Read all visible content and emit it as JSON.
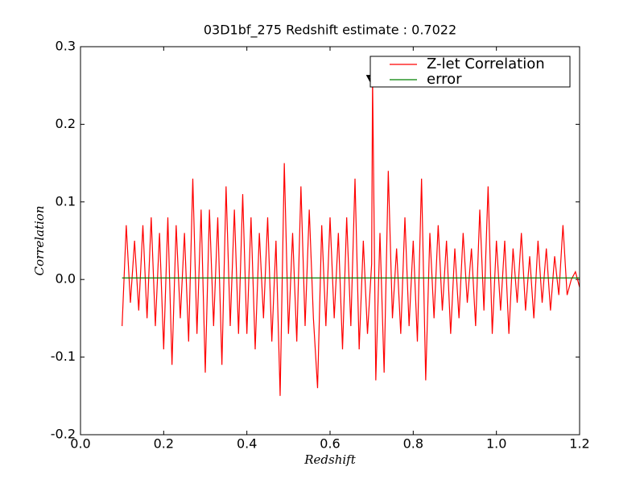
{
  "chart_data": {
    "type": "line",
    "title": "03D1bf_275 Redshift estimate : 0.7022",
    "xlabel": "Redshift",
    "ylabel": "Correlation",
    "xlim": [
      0,
      1.2
    ],
    "ylim": [
      -0.2,
      0.3
    ],
    "xticks": [
      {
        "value": 0,
        "label": "0.0"
      },
      0.2,
      0.4,
      0.6,
      0.8,
      {
        "value": 1,
        "label": "1.0"
      },
      1.2
    ],
    "yticks": [
      -0.2,
      -0.1,
      {
        "value": 0,
        "label": "0.0"
      },
      0.1,
      0.2,
      0.3
    ],
    "legend": "upper right",
    "series": [
      {
        "name": "Z-let Correlation",
        "color": "#ff0000",
        "x": [
          0.1,
          0.11,
          0.12,
          0.13,
          0.14,
          0.15,
          0.16,
          0.17,
          0.18,
          0.19,
          0.2,
          0.21,
          0.22,
          0.23,
          0.24,
          0.25,
          0.26,
          0.27,
          0.28,
          0.29,
          0.3,
          0.31,
          0.32,
          0.33,
          0.34,
          0.35,
          0.36,
          0.37,
          0.38,
          0.39,
          0.4,
          0.41,
          0.42,
          0.43,
          0.44,
          0.45,
          0.46,
          0.47,
          0.48,
          0.49,
          0.5,
          0.51,
          0.52,
          0.53,
          0.54,
          0.55,
          0.56,
          0.57,
          0.58,
          0.59,
          0.6,
          0.61,
          0.62,
          0.63,
          0.64,
          0.65,
          0.66,
          0.67,
          0.68,
          0.69,
          0.7,
          0.7022,
          0.71,
          0.72,
          0.73,
          0.74,
          0.75,
          0.76,
          0.77,
          0.78,
          0.79,
          0.8,
          0.81,
          0.82,
          0.83,
          0.84,
          0.85,
          0.86,
          0.87,
          0.88,
          0.89,
          0.9,
          0.91,
          0.92,
          0.93,
          0.94,
          0.95,
          0.96,
          0.97,
          0.98,
          0.99,
          1.0,
          1.01,
          1.02,
          1.03,
          1.04,
          1.05,
          1.06,
          1.07,
          1.08,
          1.09,
          1.1,
          1.11,
          1.12,
          1.13,
          1.14,
          1.15,
          1.16,
          1.17,
          1.18,
          1.19,
          1.2
        ],
        "values": [
          -0.06,
          0.07,
          -0.03,
          0.05,
          -0.04,
          0.07,
          -0.05,
          0.08,
          -0.06,
          0.06,
          -0.09,
          0.08,
          -0.11,
          0.07,
          -0.05,
          0.06,
          -0.08,
          0.13,
          -0.07,
          0.09,
          -0.12,
          0.09,
          -0.06,
          0.08,
          -0.11,
          0.12,
          -0.06,
          0.09,
          -0.07,
          0.11,
          -0.07,
          0.08,
          -0.09,
          0.06,
          -0.05,
          0.08,
          -0.08,
          0.05,
          -0.15,
          0.15,
          -0.07,
          0.06,
          -0.08,
          0.12,
          -0.06,
          0.09,
          -0.05,
          -0.14,
          0.07,
          -0.06,
          0.08,
          -0.05,
          0.06,
          -0.09,
          0.08,
          -0.06,
          0.13,
          -0.09,
          0.05,
          -0.07,
          0.02,
          0.26,
          -0.13,
          0.06,
          -0.12,
          0.14,
          -0.05,
          0.04,
          -0.07,
          0.08,
          -0.06,
          0.05,
          -0.08,
          0.13,
          -0.13,
          0.06,
          -0.05,
          0.07,
          -0.04,
          0.05,
          -0.07,
          0.04,
          -0.05,
          0.06,
          -0.03,
          0.04,
          -0.06,
          0.09,
          -0.04,
          0.12,
          -0.07,
          0.05,
          -0.04,
          0.05,
          -0.07,
          0.04,
          -0.03,
          0.06,
          -0.04,
          0.03,
          -0.05,
          0.05,
          -0.03,
          0.04,
          -0.04,
          0.03,
          -0.02,
          0.07,
          -0.02,
          0.0,
          0.01,
          -0.01
        ]
      },
      {
        "name": "error",
        "color": "#008000",
        "x": [
          0.1,
          1.2
        ],
        "values": [
          0.002,
          0.002
        ]
      }
    ],
    "marker": {
      "x": 0.7022,
      "y": 0.256
    }
  }
}
